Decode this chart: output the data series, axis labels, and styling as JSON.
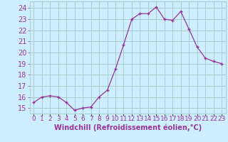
{
  "hours": [
    0,
    1,
    2,
    3,
    4,
    5,
    6,
    7,
    8,
    9,
    10,
    11,
    12,
    13,
    14,
    15,
    16,
    17,
    18,
    19,
    20,
    21,
    22,
    23
  ],
  "values": [
    15.5,
    16.0,
    16.1,
    16.0,
    15.5,
    14.8,
    15.0,
    15.1,
    16.0,
    16.6,
    18.5,
    20.7,
    23.0,
    23.5,
    23.5,
    24.1,
    23.0,
    22.9,
    23.7,
    22.1,
    20.5,
    19.5,
    19.2,
    19.0
  ],
  "line_color": "#993399",
  "marker": "+",
  "bg_color": "#cceeff",
  "grid_color": "#aacccc",
  "xlabel": "Windchill (Refroidissement éolien,°C)",
  "ylim": [
    14.5,
    24.6
  ],
  "yticks": [
    15,
    16,
    17,
    18,
    19,
    20,
    21,
    22,
    23,
    24
  ],
  "tick_color": "#993399",
  "tick_fontsize": 7,
  "xlabel_fontsize": 7,
  "xlabel_color": "#993399"
}
